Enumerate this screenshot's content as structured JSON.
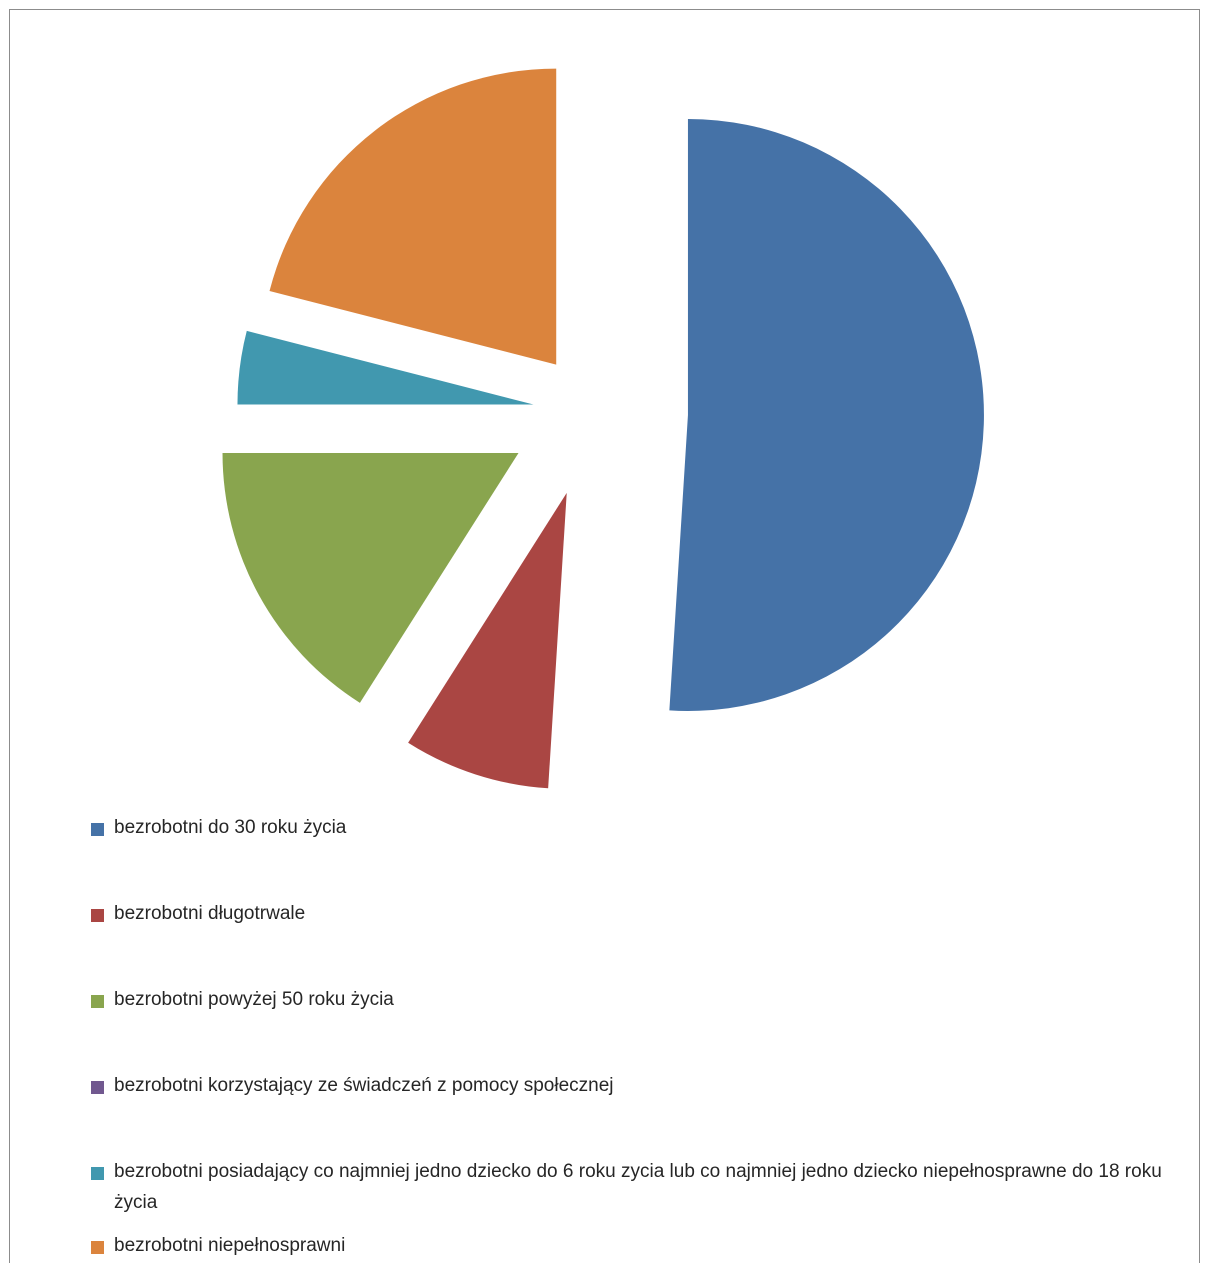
{
  "chart_data": {
    "type": "pie",
    "exploded": true,
    "start_angle_deg": 0,
    "direction": "clockwise",
    "slices": [
      {
        "label": "bezrobotni do 30 roku życia",
        "value": 51,
        "color": "#4572a7"
      },
      {
        "label": "bezrobotni długotrwale",
        "value": 8,
        "color": "#aa4643"
      },
      {
        "label": "bezrobotni powyżej 50 roku życia",
        "value": 16,
        "color": "#89a54e"
      },
      {
        "label": "bezrobotni korzystający ze świadczeń z pomocy społecznej",
        "value": 0,
        "color": "#71588f"
      },
      {
        "label": "bezrobotni posiadający co najmniej jedno dziecko do 6 roku zycia lub co najmniej jedno dziecko niepełnosprawne do 18 roku życia",
        "value": 4,
        "color": "#4198af"
      },
      {
        "label": "bezrobotni niepełnosprawni",
        "value": 21,
        "color": "#db843d"
      }
    ],
    "legend_position": "bottom"
  }
}
